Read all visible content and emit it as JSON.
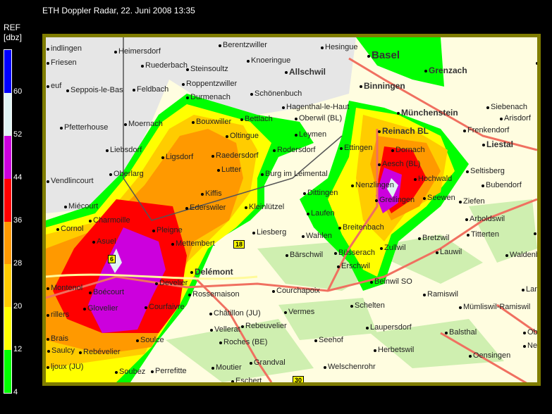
{
  "title": "ETH Doppler Radar, 22. Juni 2008 13:35",
  "legend": {
    "label": "REF",
    "unit": "[dbz]",
    "colors": [
      "#0000ff",
      "#e0f4f4",
      "#cc00dd",
      "#ff0000",
      "#ff9900",
      "#ffcc00",
      "#ffff00",
      "#00ff00"
    ],
    "ticks": [
      "60",
      "52",
      "44",
      "36",
      "28",
      "20",
      "12",
      "4"
    ]
  },
  "map": {
    "road_signs": [
      "18",
      "6",
      "30"
    ],
    "colors": {
      "france": "#e6e6e6",
      "switzerland": "#fffde0",
      "forest": "#cfefb0",
      "border": "#807d00",
      "road": "#f07060"
    },
    "places": [
      "indlingen",
      "Friesen",
      "Heimersdorf",
      "Ruederbach",
      "Steinsoultz",
      "Berentzwiller",
      "Knoeringue",
      "Hesingue",
      "Basel",
      "Allschwil",
      "Grenzach",
      "Rhe",
      "Binningen",
      "euf",
      "Seppois-le-Bas",
      "Feldbach",
      "Roppentzwiller",
      "Durmenach",
      "Schönenbuch",
      "Hagenthal-le-Haut",
      "Münchenstein",
      "Siebenach",
      "Arisdorf",
      "Pfetterhouse",
      "Moernach",
      "Bouxwiller",
      "Bettlach",
      "Oberwil (BL)",
      "Reinach BL",
      "Frenkendorf",
      "Liestal",
      "Oltingue",
      "Leymen",
      "Liebsdorf",
      "Ligsdorf",
      "Raedersdorf",
      "Rodersdorf",
      "Ettingen",
      "Dornach",
      "Seltisberg",
      "Oberlarg",
      "Lutter",
      "Burg im Leimental",
      "Aesch (BL)",
      "Hochwald",
      "Bubendorf",
      "Vendlincourt",
      "Kiffis",
      "Dittingen",
      "Nenzlingen",
      "Grellingen",
      "Seewen",
      "Ziefen",
      "Miécourt",
      "Charmoille",
      "Ederswiler",
      "Kleinlützel",
      "Laufen",
      "Arboldswil",
      "Cornol",
      "Asuel",
      "Pleigne",
      "Wahlen",
      "Breitenbach",
      "Liesberg",
      "Bretzwil",
      "Titterten",
      "Bennw",
      "Mettembert",
      "Zullwil",
      "Lauwil",
      "Bärschwil",
      "Büsserach",
      "Waldenburg",
      "Erschwil",
      "Delémont",
      "Montenol",
      "Boécourt",
      "Develier",
      "Rossemaison",
      "Courchapoix",
      "Beinwil SO",
      "Ramiswil",
      "Langenbr",
      "Glovelier",
      "Courfaivre",
      "Châtillon (JU)",
      "Vermes",
      "Schelten",
      "Mümliswil-Ramiswil",
      "Vellerat",
      "Rebeuvelier",
      "Laupersdorf",
      "Balsthal",
      "Oberbu",
      "Brais",
      "Soulce",
      "Seehof",
      "Roches (BE)",
      "Saulcy",
      "Rebévelier",
      "Herbetswil",
      "Oensingen",
      "Ne",
      "ljoux (JU)",
      "Grandval",
      "Welschenrohr",
      "Soubez",
      "Perrefitte",
      "Moutier",
      "Eschert",
      "Oberbuc",
      "rillers"
    ]
  }
}
